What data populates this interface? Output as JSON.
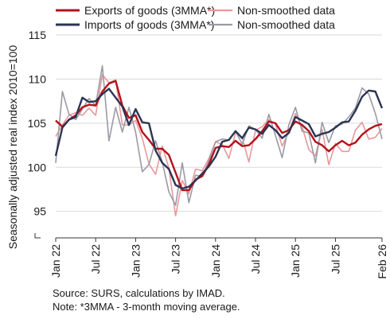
{
  "chart_data": {
    "type": "line",
    "ylabel": "Seasonally adjusted real index 2010=100",
    "ylim": [
      92,
      115
    ],
    "y_ticks": [
      "115",
      "110",
      "105",
      "100",
      "95"
    ],
    "x_tick_labels": [
      "Jan 22",
      "Jul 22",
      "Jan 23",
      "Jul 23",
      "Jan 24",
      "Jul 24",
      "Jan 25",
      "Jul 25",
      "Feb 26"
    ],
    "x_tick_index": [
      0,
      6,
      12,
      18,
      24,
      30,
      36,
      42,
      49
    ],
    "legend": [
      {
        "label": "Exports of goods (3MMA*)",
        "series": 0
      },
      {
        "label": "Non-smoothed data",
        "series": 1
      },
      {
        "label": "Imports of goods (3MMA*)",
        "series": 2
      },
      {
        "label": "Non-smoothed data",
        "series": 3
      }
    ],
    "series": [
      {
        "name": "Exports of goods (3MMA*)",
        "color": "#b3121b",
        "values": [
          105.3,
          104.6,
          105.4,
          105.9,
          106.8,
          107.1,
          107.0,
          108.6,
          109.5,
          109.8,
          107.0,
          105.6,
          105.9,
          104.0,
          103.1,
          102.1,
          102.1,
          101.4,
          99.4,
          97.4,
          97.4,
          98.6,
          99.0,
          100.3,
          102.2,
          102.4,
          102.3,
          103.0,
          102.4,
          102.5,
          103.2,
          104.1,
          105.2,
          105.0,
          103.9,
          104.2,
          105.2,
          104.8,
          104.1,
          102.9,
          102.5,
          101.8,
          102.5,
          103.0,
          102.5,
          102.8,
          103.7,
          104.3,
          104.7,
          104.9
        ]
      },
      {
        "name": "Non-smoothed data",
        "color": "#e8989b",
        "values": [
          103.5,
          104.8,
          105.9,
          106.2,
          105.9,
          106.7,
          105.9,
          110.5,
          109.6,
          109.9,
          104.8,
          104.8,
          105.3,
          103.3,
          100.4,
          99.2,
          102.4,
          99.9,
          94.5,
          98.5,
          97.0,
          99.8,
          99.6,
          101.0,
          102.9,
          102.6,
          101.0,
          103.9,
          103.4,
          100.6,
          104.2,
          104.6,
          105.4,
          104.9,
          102.4,
          104.0,
          106.1,
          104.6,
          102.0,
          101.3,
          104.3,
          100.3,
          102.7,
          101.8,
          101.8,
          104.2,
          105.1,
          103.2,
          103.4,
          104.4
        ]
      },
      {
        "name": "Imports of goods (3MMA*)",
        "color": "#2b3452",
        "values": [
          101.3,
          104.5,
          105.4,
          105.7,
          107.9,
          107.4,
          107.5,
          108.3,
          108.9,
          107.9,
          106.9,
          104.8,
          106.6,
          105.1,
          105.0,
          101.9,
          100.5,
          99.8,
          98.0,
          97.6,
          97.8,
          98.5,
          99.3,
          100.1,
          101.2,
          102.9,
          103.1,
          104.1,
          103.3,
          104.5,
          104.3,
          103.8,
          104.8,
          104.2,
          103.3,
          103.9,
          105.7,
          105.3,
          104.9,
          103.5,
          103.8,
          104.0,
          104.5,
          105.1,
          105.2,
          106.4,
          108.0,
          108.7,
          108.6,
          106.7
        ]
      },
      {
        "name": "Non-smoothed data",
        "color": "#9a9aa6",
        "values": [
          100.5,
          108.6,
          106.0,
          105.4,
          106.6,
          107.8,
          107.0,
          111.5,
          103.0,
          106.8,
          104.0,
          106.8,
          104.0,
          99.5,
          100.3,
          103.0,
          100.6,
          97.2,
          95.7,
          100.5,
          96.0,
          99.1,
          99.0,
          100.7,
          102.9,
          103.2,
          103.1,
          104.1,
          102.6,
          104.7,
          104.3,
          103.3,
          106.0,
          103.6,
          101.1,
          104.8,
          106.8,
          104.1,
          103.9,
          100.5,
          105.1,
          102.8,
          104.7,
          104.9,
          105.7,
          106.7,
          109.0,
          108.3,
          106.1,
          103.2
        ]
      }
    ]
  },
  "notes": {
    "source": "Source: SURS, calculations by IMAD.",
    "note": "Note: *3MMA - 3-month moving average."
  }
}
